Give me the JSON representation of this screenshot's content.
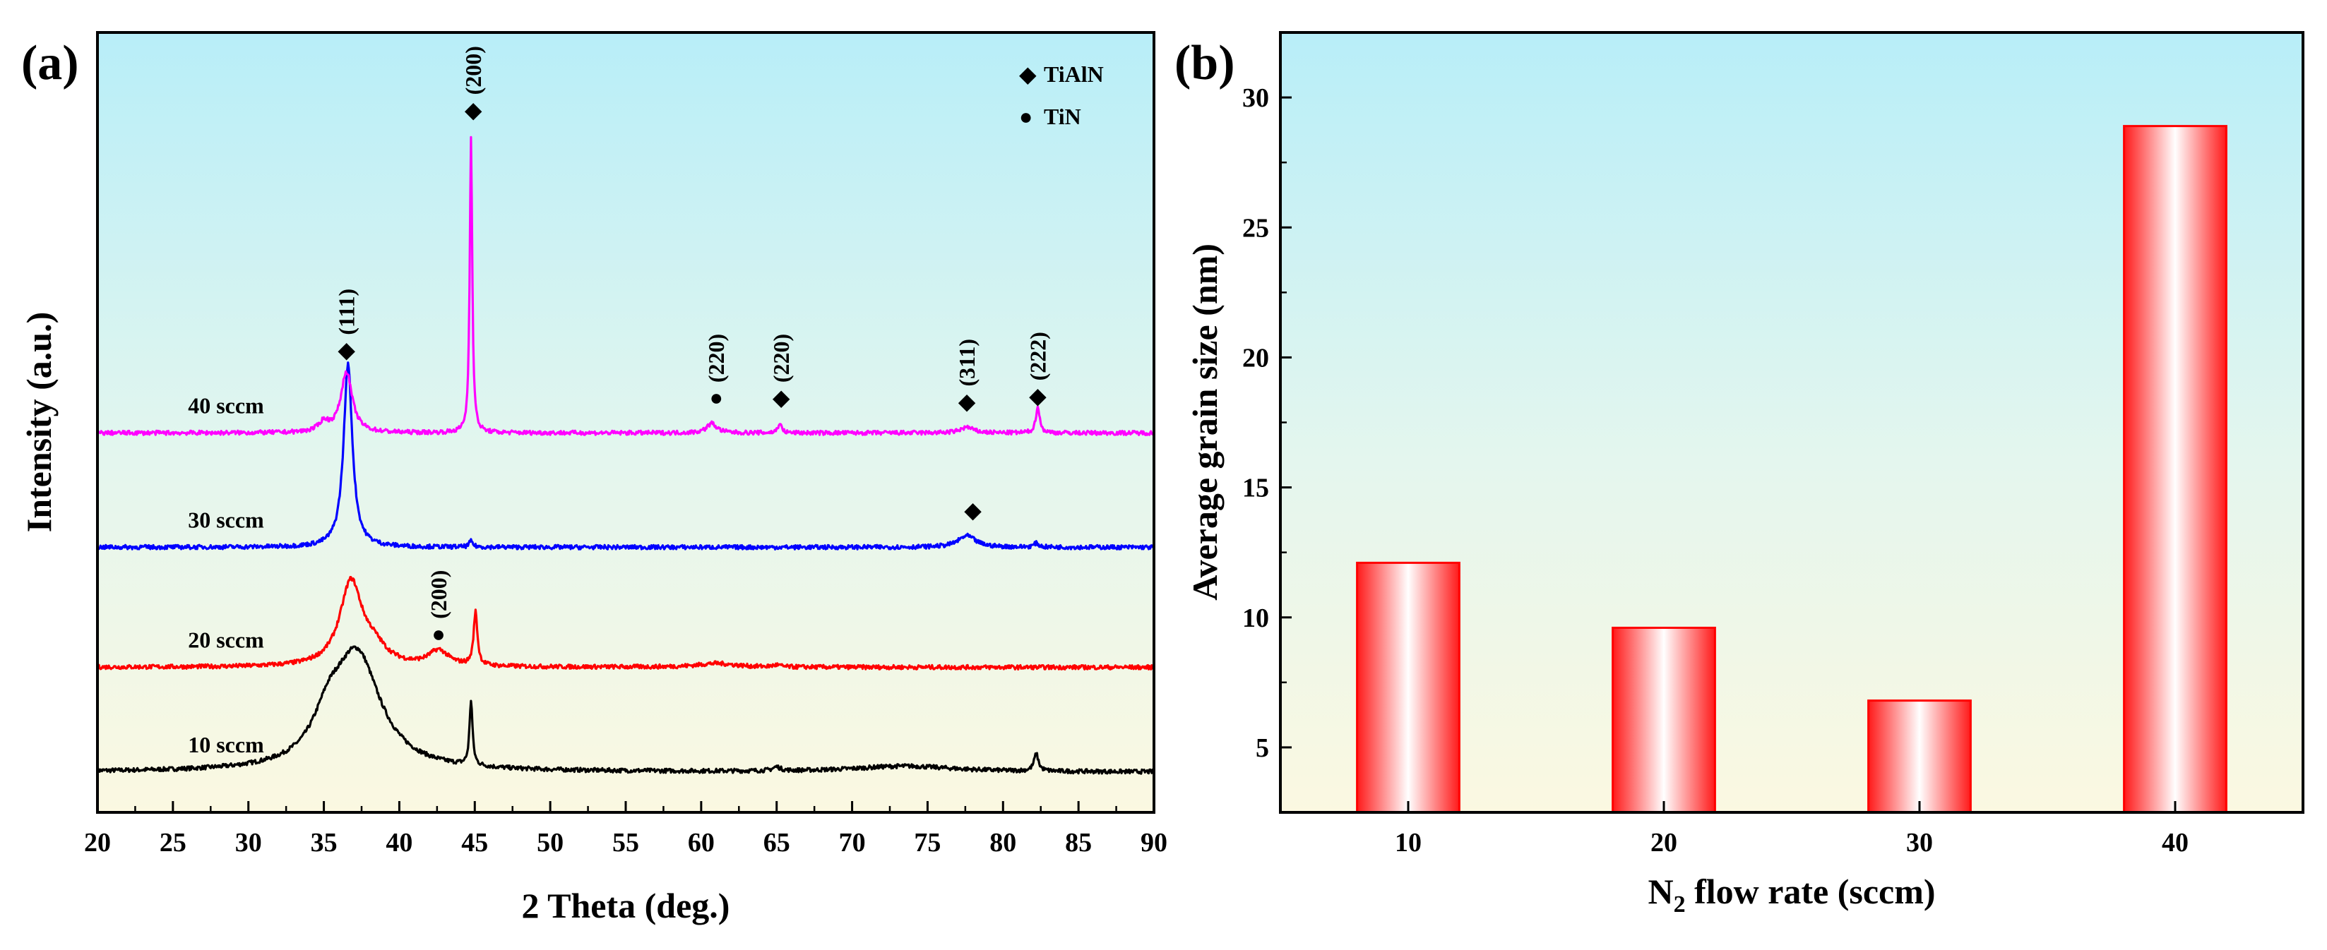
{
  "chart_data": [
    {
      "type": "line",
      "panel_label": "(a)",
      "xlabel": "2 Theta (deg.)",
      "ylabel": "Intensity (a.u.)",
      "xlim": [
        20,
        90
      ],
      "x_ticks": [
        20,
        25,
        30,
        35,
        40,
        45,
        50,
        55,
        60,
        65,
        70,
        75,
        80,
        85,
        90
      ],
      "legend": [
        {
          "marker": "◆",
          "label": "TiAlN"
        },
        {
          "marker": "●",
          "label": "TiN"
        }
      ],
      "series": [
        {
          "name": "10 sccm",
          "color": "#000000",
          "baseline": 0.0,
          "peaks": [
            [
              35.3,
              0.18,
              1.2
            ],
            [
              37.2,
              0.6,
              1.9
            ],
            [
              44.75,
              0.34,
              0.12
            ],
            [
              65.0,
              0.02,
              0.3
            ],
            [
              73.5,
              0.03,
              4.0
            ],
            [
              82.2,
              0.09,
              0.18
            ]
          ]
        },
        {
          "name": "20 sccm",
          "color": "#ff0000",
          "baseline": 0.55,
          "peaks": [
            [
              36.8,
              0.44,
              0.9
            ],
            [
              38.3,
              0.08,
              1.0
            ],
            [
              42.6,
              0.08,
              0.8
            ],
            [
              45.05,
              0.28,
              0.15
            ],
            [
              61.0,
              0.02,
              1.5
            ],
            [
              65.0,
              0.01,
              0.3
            ]
          ]
        },
        {
          "name": "30 sccm",
          "color": "#0000ff",
          "baseline": 1.18,
          "peaks": [
            [
              36.6,
              0.96,
              0.35
            ],
            [
              44.75,
              0.03,
              0.15
            ],
            [
              77.6,
              0.06,
              0.7
            ],
            [
              82.2,
              0.02,
              0.2
            ]
          ]
        },
        {
          "name": "40 sccm",
          "color": "#ff00ff",
          "baseline": 1.78,
          "peaks": [
            [
              35.0,
              0.05,
              0.4
            ],
            [
              36.5,
              0.32,
              0.45
            ],
            [
              44.75,
              1.55,
              0.1
            ],
            [
              60.7,
              0.05,
              0.4
            ],
            [
              65.2,
              0.05,
              0.15
            ],
            [
              77.6,
              0.03,
              0.5
            ],
            [
              82.3,
              0.14,
              0.15
            ]
          ]
        }
      ],
      "annotations": [
        {
          "text": "(111)",
          "marker": "◆",
          "x": 36.5,
          "y": 2.22
        },
        {
          "text": "(200)",
          "marker": "◆",
          "x": 44.9,
          "y": 3.48
        },
        {
          "text": "(220)",
          "marker": "●",
          "x": 61.0,
          "y": 1.97
        },
        {
          "text": "(220)",
          "marker": "◆",
          "x": 65.3,
          "y": 1.97
        },
        {
          "text": "(311)",
          "marker": "◆",
          "x": 77.6,
          "y": 1.95
        },
        {
          "text": "(222)",
          "marker": "◆",
          "x": 82.3,
          "y": 1.98
        },
        {
          "text": "",
          "marker": "◆",
          "x": 78.0,
          "y": 1.38
        },
        {
          "text": "(200)",
          "marker": "●",
          "x": 42.6,
          "y": 0.73
        }
      ]
    },
    {
      "type": "bar",
      "panel_label": "(b)",
      "xlabel_main": "N",
      "xlabel_sub": "2",
      "xlabel_rest": " flow rate (sccm)",
      "ylabel": "Average grain size (nm)",
      "categories": [
        "10",
        "20",
        "30",
        "40"
      ],
      "values": [
        12.1,
        9.6,
        6.8,
        28.9
      ],
      "ylim": [
        2.5,
        32.5
      ],
      "y_ticks": [
        5,
        10,
        15,
        20,
        25,
        30
      ],
      "bar_color": "#ff0000"
    }
  ]
}
